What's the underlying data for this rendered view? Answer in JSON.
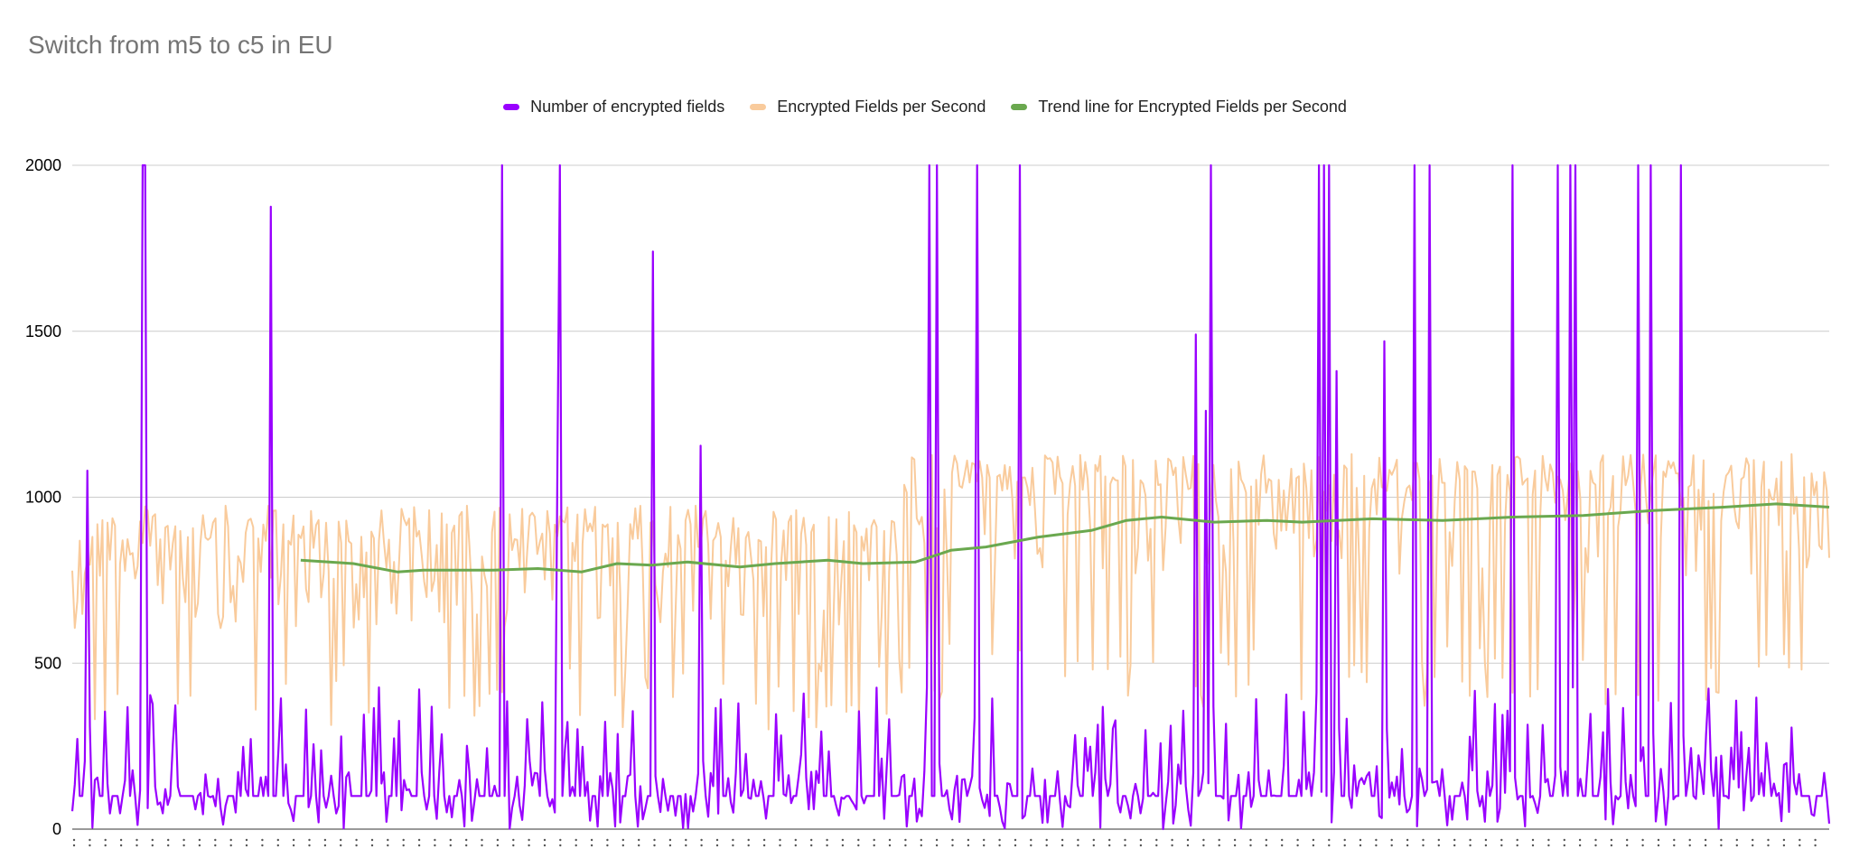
{
  "chart_title": "Switch from m5 to c5 in EU",
  "legend": [
    {
      "label": "Number of encrypted fields",
      "color": "#9900ff"
    },
    {
      "label": "Encrypted Fields per Second",
      "color": "#f9cb9c"
    },
    {
      "label": "Trend line for Encrypted Fields per Second",
      "color": "#6aa84f"
    }
  ],
  "chart_data": {
    "type": "line",
    "title": "Switch from m5 to c5 in EU",
    "xlabel": "",
    "ylabel": "",
    "ylim": [
      0,
      2000
    ],
    "yticks": [
      "0",
      "500",
      "1000",
      "1500",
      "2000"
    ],
    "grid": true,
    "legend_position": "top",
    "n_points": 700,
    "series": [
      {
        "name": "Number of encrypted fields",
        "color": "#9900ff",
        "baseline": 100,
        "typical_range": [
          0,
          350
        ],
        "spikes": [
          {
            "x": 0.04,
            "y": 2000
          },
          {
            "x": 0.041,
            "y": 2000
          },
          {
            "x": 0.009,
            "y": 1080
          },
          {
            "x": 0.113,
            "y": 1875
          },
          {
            "x": 0.245,
            "y": 2000
          },
          {
            "x": 0.278,
            "y": 2000
          },
          {
            "x": 0.276,
            "y": 1070
          },
          {
            "x": 0.33,
            "y": 1740
          },
          {
            "x": 0.358,
            "y": 1155
          },
          {
            "x": 0.488,
            "y": 2000
          },
          {
            "x": 0.492,
            "y": 2000
          },
          {
            "x": 0.515,
            "y": 2000
          },
          {
            "x": 0.54,
            "y": 2000
          },
          {
            "x": 0.64,
            "y": 1490
          },
          {
            "x": 0.645,
            "y": 1260
          },
          {
            "x": 0.648,
            "y": 2000
          },
          {
            "x": 0.709,
            "y": 2000
          },
          {
            "x": 0.713,
            "y": 2000
          },
          {
            "x": 0.716,
            "y": 2000
          },
          {
            "x": 0.72,
            "y": 1380
          },
          {
            "x": 0.747,
            "y": 1470
          },
          {
            "x": 0.764,
            "y": 2000
          },
          {
            "x": 0.773,
            "y": 2000
          },
          {
            "x": 0.82,
            "y": 2000
          },
          {
            "x": 0.845,
            "y": 2000
          },
          {
            "x": 0.853,
            "y": 2000
          },
          {
            "x": 0.855,
            "y": 2000
          },
          {
            "x": 0.891,
            "y": 2000
          },
          {
            "x": 0.898,
            "y": 2000
          },
          {
            "x": 0.915,
            "y": 2000
          }
        ]
      },
      {
        "name": "Encrypted Fields per Second",
        "color": "#f9cb9c",
        "typical_range_first_half": [
          500,
          980
        ],
        "typical_range_second_half": [
          600,
          1130
        ]
      },
      {
        "name": "Trend line for Encrypted Fields per Second",
        "color": "#6aa84f",
        "points": [
          {
            "x": 0.13,
            "y": 810
          },
          {
            "x": 0.16,
            "y": 800
          },
          {
            "x": 0.185,
            "y": 775
          },
          {
            "x": 0.2,
            "y": 780
          },
          {
            "x": 0.24,
            "y": 780
          },
          {
            "x": 0.265,
            "y": 785
          },
          {
            "x": 0.29,
            "y": 775
          },
          {
            "x": 0.31,
            "y": 800
          },
          {
            "x": 0.33,
            "y": 795
          },
          {
            "x": 0.35,
            "y": 805
          },
          {
            "x": 0.38,
            "y": 790
          },
          {
            "x": 0.4,
            "y": 800
          },
          {
            "x": 0.43,
            "y": 810
          },
          {
            "x": 0.45,
            "y": 800
          },
          {
            "x": 0.48,
            "y": 805
          },
          {
            "x": 0.5,
            "y": 840
          },
          {
            "x": 0.52,
            "y": 850
          },
          {
            "x": 0.55,
            "y": 880
          },
          {
            "x": 0.58,
            "y": 900
          },
          {
            "x": 0.6,
            "y": 930
          },
          {
            "x": 0.62,
            "y": 940
          },
          {
            "x": 0.65,
            "y": 925
          },
          {
            "x": 0.68,
            "y": 930
          },
          {
            "x": 0.7,
            "y": 925
          },
          {
            "x": 0.74,
            "y": 935
          },
          {
            "x": 0.78,
            "y": 930
          },
          {
            "x": 0.82,
            "y": 940
          },
          {
            "x": 0.86,
            "y": 945
          },
          {
            "x": 0.9,
            "y": 960
          },
          {
            "x": 0.94,
            "y": 970
          },
          {
            "x": 0.97,
            "y": 980
          },
          {
            "x": 1.0,
            "y": 970
          }
        ]
      }
    ]
  }
}
